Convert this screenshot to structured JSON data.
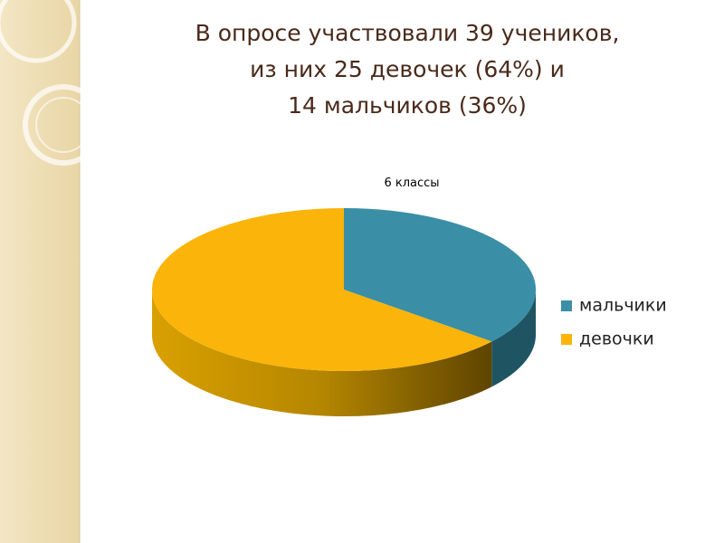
{
  "chart_data": {
    "type": "pie3d",
    "title": [
      "В опросе участвовали 39 учеников,",
      "из них 25 девочек (64%) и",
      "14 мальчиков (36%)"
    ],
    "subtitle": "6 классы",
    "categories": [
      "мальчики",
      "девочки"
    ],
    "values": [
      36,
      64
    ],
    "colors": [
      "#3a8fa6",
      "#fbb40a"
    ],
    "side_colors": [
      "#1f5563",
      "#8a6400"
    ],
    "legend": "right"
  }
}
